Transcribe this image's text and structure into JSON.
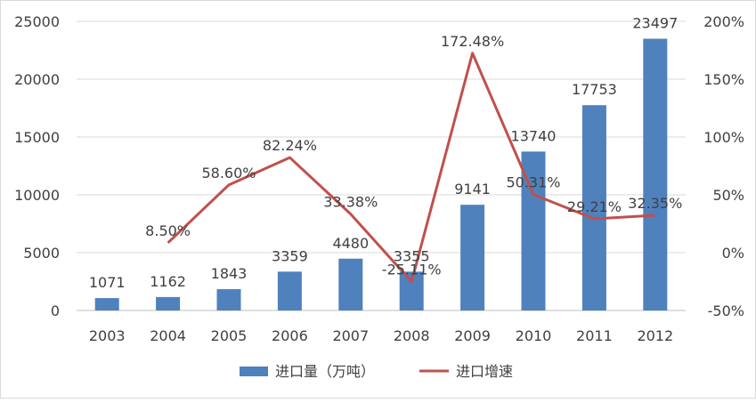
{
  "chart_data": {
    "type": "bar+line",
    "categories": [
      "2003",
      "2004",
      "2005",
      "2006",
      "2007",
      "2008",
      "2009",
      "2010",
      "2011",
      "2012"
    ],
    "series": [
      {
        "name": "进口量（万吨）",
        "type": "bar",
        "axis": "left",
        "color": "#4f81bd",
        "values": [
          1071,
          1162,
          1843,
          3359,
          4480,
          3355,
          9141,
          13740,
          17753,
          23497
        ],
        "labels": [
          "1071",
          "1162",
          "1843",
          "3359",
          "4480",
          "3355",
          "9141",
          "13740",
          "17753",
          "23497"
        ]
      },
      {
        "name": "进口增速",
        "type": "line",
        "axis": "right",
        "color": "#c0504d",
        "values": [
          null,
          8.5,
          58.6,
          82.24,
          33.38,
          -25.11,
          172.48,
          50.31,
          29.21,
          32.35
        ],
        "labels": [
          null,
          "8.50%",
          "58.60%",
          "82.24%",
          "33.38%",
          "-25.11%",
          "172.48%",
          "50.31%",
          "29.21%",
          "32.35%"
        ]
      }
    ],
    "left_axis": {
      "min": 0,
      "max": 25000,
      "ticks": [
        "0",
        "5000",
        "10000",
        "15000",
        "20000",
        "25000"
      ]
    },
    "right_axis": {
      "min": -50,
      "max": 200,
      "ticks": [
        "-50%",
        "0%",
        "50%",
        "100%",
        "150%",
        "200%"
      ]
    },
    "grid": true,
    "legend": "bottom"
  }
}
